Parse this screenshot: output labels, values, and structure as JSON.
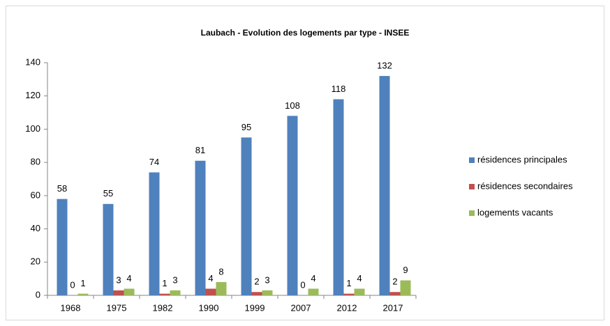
{
  "chart_data": {
    "type": "bar",
    "title": "Laubach - Evolution des logements par type - INSEE",
    "categories": [
      "1968",
      "1975",
      "1982",
      "1990",
      "1999",
      "2007",
      "2012",
      "2017"
    ],
    "series": [
      {
        "name": "résidences principales",
        "color": "#4f81bd",
        "values": [
          58,
          55,
          74,
          81,
          95,
          108,
          118,
          132
        ]
      },
      {
        "name": "résidences secondaires",
        "color": "#c0504d",
        "values": [
          0,
          3,
          1,
          4,
          2,
          0,
          1,
          2
        ]
      },
      {
        "name": "logements vacants",
        "color": "#9bbb59",
        "values": [
          1,
          4,
          3,
          8,
          3,
          4,
          4,
          9
        ]
      }
    ],
    "ylim": [
      0,
      140
    ],
    "yticks": [
      0,
      20,
      40,
      60,
      80,
      100,
      120,
      140
    ],
    "grid": false,
    "legend": "right"
  }
}
